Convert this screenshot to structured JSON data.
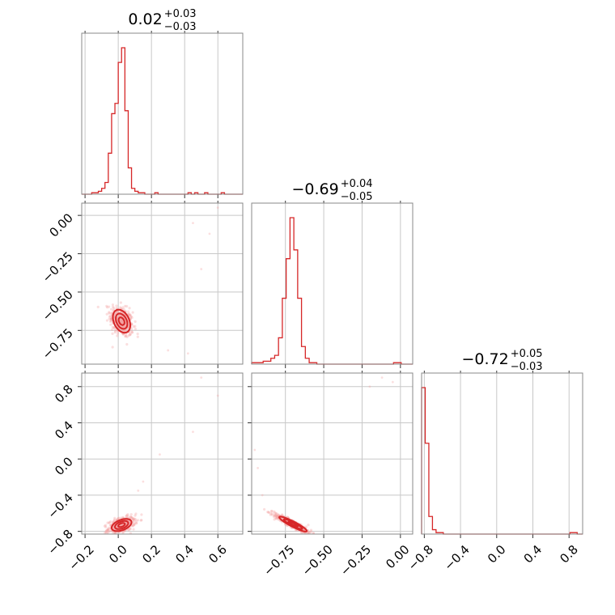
{
  "chart_data": {
    "type": "scatter",
    "style": {
      "color": "#d62728",
      "density_color": "#f4a3a3",
      "grid": true
    },
    "parameters": [
      {
        "title": {
          "median": "0.02",
          "plus": "+0.03",
          "minus": "−0.03"
        },
        "range": [
          -0.22,
          0.75
        ],
        "ticks": [
          -0.2,
          0.0,
          0.2,
          0.4,
          0.6
        ],
        "tick_labels": [
          "−0.2",
          "0.0",
          "0.2",
          "0.4",
          "0.6"
        ]
      },
      {
        "title": {
          "median": "−0.69",
          "plus": "+0.04",
          "minus": "−0.05"
        },
        "range": [
          -0.97,
          0.08
        ],
        "ticks": [
          -0.75,
          -0.5,
          -0.25,
          0.0
        ],
        "tick_labels": [
          "−0.75",
          "−0.50",
          "−0.25",
          "0.00"
        ]
      },
      {
        "title": {
          "median": "−0.72",
          "plus": "+0.05",
          "minus": "−0.03"
        },
        "range": [
          -0.83,
          0.95
        ],
        "ticks": [
          -0.8,
          -0.4,
          0.0,
          0.4,
          0.8
        ],
        "tick_labels": [
          "−0.8",
          "−0.4",
          "0.0",
          "0.4",
          "0.8"
        ]
      }
    ],
    "histograms": [
      {
        "param": 0,
        "edges": [
          -0.22,
          -0.2,
          -0.18,
          -0.16,
          -0.14,
          -0.12,
          -0.1,
          -0.08,
          -0.06,
          -0.04,
          -0.02,
          0.0,
          0.02,
          0.04,
          0.06,
          0.08,
          0.1,
          0.12,
          0.14,
          0.16,
          0.18,
          0.2,
          0.22,
          0.24,
          0.26,
          0.28,
          0.3,
          0.32,
          0.34,
          0.36,
          0.38,
          0.4,
          0.42,
          0.44,
          0.46,
          0.48,
          0.5,
          0.52,
          0.54,
          0.56,
          0.58,
          0.6,
          0.62,
          0.64,
          0.66,
          0.68,
          0.7,
          0.72,
          0.75
        ],
        "counts": [
          0,
          0,
          0,
          1,
          1,
          2,
          4,
          8,
          28,
          55,
          62,
          90,
          100,
          57,
          18,
          4,
          2,
          1,
          1,
          0,
          0,
          0,
          1,
          0,
          0,
          0,
          0,
          0,
          0,
          0,
          0,
          0,
          1,
          0,
          1,
          0,
          0,
          1,
          0,
          0,
          0,
          0,
          1,
          0,
          0,
          0,
          0,
          0
        ]
      },
      {
        "param": 1,
        "edges": [
          -0.97,
          -0.945,
          -0.92,
          -0.895,
          -0.87,
          -0.845,
          -0.82,
          -0.795,
          -0.77,
          -0.745,
          -0.72,
          -0.695,
          -0.67,
          -0.645,
          -0.62,
          -0.595,
          -0.57,
          -0.545,
          -0.52,
          -0.495,
          -0.47,
          -0.445,
          -0.42,
          -0.395,
          -0.37,
          -0.345,
          -0.32,
          -0.295,
          -0.27,
          -0.245,
          -0.22,
          -0.195,
          -0.17,
          -0.145,
          -0.12,
          -0.095,
          -0.07,
          -0.045,
          -0.02,
          0.005,
          0.03,
          0.055,
          0.08
        ],
        "counts": [
          1,
          1,
          1,
          2,
          2,
          4,
          6,
          18,
          45,
          72,
          100,
          78,
          45,
          12,
          4,
          1,
          1,
          0,
          0,
          0,
          0,
          0,
          0,
          0,
          0,
          0,
          0,
          0,
          0,
          0,
          0,
          0,
          0,
          0,
          0,
          0,
          0,
          1,
          1,
          0,
          0,
          0
        ]
      },
      {
        "param": 2,
        "edges": [
          -0.83,
          -0.79,
          -0.75,
          -0.71,
          -0.67,
          -0.63,
          -0.59,
          -0.55,
          -0.51,
          -0.47,
          -0.43,
          -0.39,
          -0.35,
          -0.31,
          -0.27,
          -0.23,
          -0.19,
          -0.15,
          -0.11,
          -0.07,
          -0.03,
          0.01,
          0.05,
          0.09,
          0.13,
          0.17,
          0.21,
          0.25,
          0.29,
          0.33,
          0.37,
          0.41,
          0.45,
          0.49,
          0.53,
          0.57,
          0.61,
          0.65,
          0.69,
          0.73,
          0.77,
          0.81,
          0.85,
          0.89,
          0.95
        ],
        "counts": [
          100,
          62,
          12,
          3,
          1,
          1,
          0,
          0,
          0,
          0,
          0,
          0,
          0,
          0,
          0,
          0,
          0,
          0,
          0,
          0,
          0,
          0,
          0,
          0,
          0,
          0,
          0,
          0,
          0,
          0,
          0,
          0,
          0,
          0,
          0,
          0,
          0,
          0,
          0,
          0,
          0,
          1,
          1,
          0
        ]
      }
    ],
    "scatter_panels": [
      {
        "x_param": 0,
        "y_param": 1,
        "center": [
          0.02,
          -0.69
        ],
        "spread": [
          0.035,
          0.05
        ],
        "correlation": -0.35,
        "contour_levels": [
          0.5,
          1.0,
          1.5
        ],
        "outliers": [
          [
            0.45,
            -0.05
          ],
          [
            0.55,
            -0.12
          ],
          [
            0.6,
            0.05
          ],
          [
            0.42,
            -0.9
          ],
          [
            0.3,
            -0.88
          ],
          [
            0.5,
            -0.35
          ]
        ]
      },
      {
        "x_param": 0,
        "y_param": 2,
        "center": [
          0.02,
          -0.73
        ],
        "spread": [
          0.04,
          0.045
        ],
        "correlation": 0.45,
        "contour_levels": [
          0.5,
          1.0,
          1.5
        ],
        "outliers": [
          [
            0.5,
            0.9
          ],
          [
            0.6,
            0.7
          ],
          [
            0.45,
            0.3
          ],
          [
            0.15,
            -0.25
          ],
          [
            0.12,
            -0.35
          ],
          [
            0.25,
            0.05
          ]
        ]
      },
      {
        "x_param": 1,
        "y_param": 2,
        "center": [
          -0.7,
          -0.72
        ],
        "spread": [
          0.06,
          0.055
        ],
        "correlation": -0.92,
        "contour_levels": [
          0.5,
          1.0,
          1.5
        ],
        "outliers": [
          [
            -0.93,
            -0.1
          ],
          [
            -0.95,
            0.1
          ],
          [
            -0.9,
            -0.4
          ],
          [
            -0.2,
            0.8
          ],
          [
            -0.05,
            0.85
          ],
          [
            -0.12,
            0.9
          ]
        ]
      }
    ]
  }
}
